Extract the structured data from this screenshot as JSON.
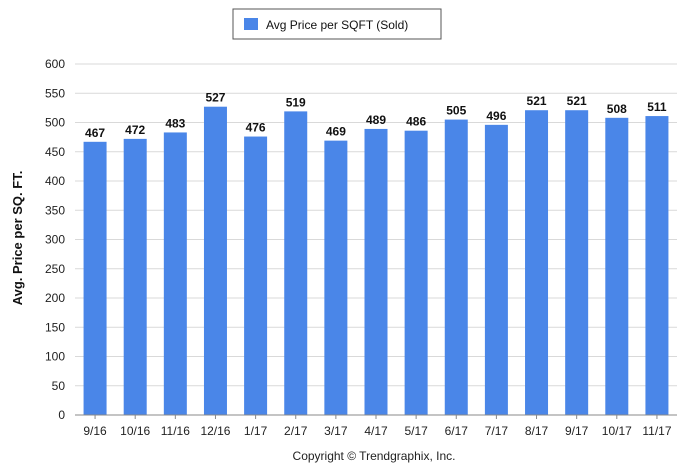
{
  "chart_data": {
    "type": "bar",
    "categories": [
      "9/16",
      "10/16",
      "11/16",
      "12/16",
      "1/17",
      "2/17",
      "3/17",
      "4/17",
      "5/17",
      "6/17",
      "7/17",
      "8/17",
      "9/17",
      "10/17",
      "11/17"
    ],
    "series": [
      {
        "name": "Avg Price per SQFT (Sold)",
        "values": [
          467,
          472,
          483,
          527,
          476,
          519,
          469,
          489,
          486,
          505,
          496,
          521,
          521,
          508,
          511
        ],
        "color": "#4a86e8"
      }
    ],
    "xlabel": "",
    "ylabel": "Avg. Price per SQ. FT.",
    "ylim": [
      0,
      600
    ],
    "yticks": [
      0,
      50,
      100,
      150,
      200,
      250,
      300,
      350,
      400,
      450,
      500,
      550,
      600
    ],
    "grid": true,
    "legend_position": "top-center",
    "data_labels": true
  },
  "footer": {
    "copyright": "Copyright © Trendgraphix, Inc."
  },
  "colors": {
    "bar": "#4a86e8",
    "grid": "#d9d9d9",
    "axis": "#888888"
  }
}
